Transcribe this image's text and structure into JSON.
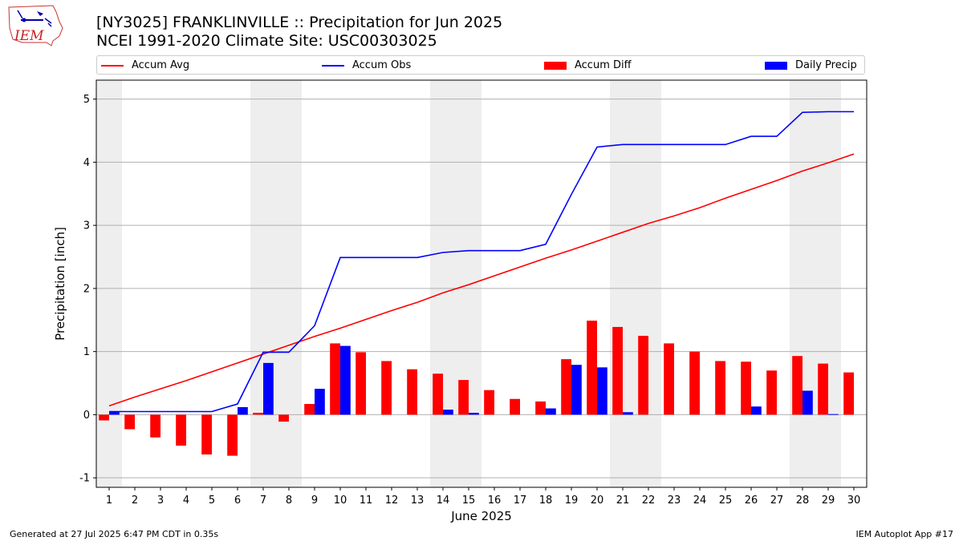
{
  "header": {
    "title": "[NY3025] FRANKLINVILLE :: Precipitation for Jun 2025",
    "subtitle": "NCEI 1991-2020 Climate Site: USC00303025"
  },
  "logo": {
    "text": "IEM"
  },
  "legend": {
    "placement": "top",
    "items": [
      {
        "label": "Accum Avg",
        "kind": "line",
        "color": "#ff0000"
      },
      {
        "label": "Accum Obs",
        "kind": "line",
        "color": "#0000ff"
      },
      {
        "label": "Accum Diff",
        "kind": "bar",
        "color": "#ff0000"
      },
      {
        "label": "Daily Precip",
        "kind": "bar",
        "color": "#0000ff"
      }
    ]
  },
  "footer": {
    "left": "Generated at 27 Jul 2025 6:47 PM CDT in 0.35s",
    "right": "IEM Autoplot App #17"
  },
  "chart_data": {
    "type": "bar",
    "title": "[NY3025] FRANKLINVILLE :: Precipitation for Jun 2025",
    "subtitle": "NCEI 1991-2020 Climate Site: USC00303025",
    "xlabel": "June 2025",
    "ylabel": "Precipitation [inch]",
    "ylim": [
      -1.15,
      5.3
    ],
    "xlim": [
      0.5,
      30.5
    ],
    "grid": "horizontal",
    "legend_placement": "top",
    "categories": [
      "1",
      "2",
      "3",
      "4",
      "5",
      "6",
      "7",
      "8",
      "9",
      "10",
      "11",
      "12",
      "13",
      "14",
      "15",
      "16",
      "17",
      "18",
      "19",
      "20",
      "21",
      "22",
      "23",
      "24",
      "25",
      "26",
      "27",
      "28",
      "29",
      "30"
    ],
    "yticks": [
      -1,
      0,
      1,
      2,
      3,
      4,
      5
    ],
    "weekend_shading": [
      [
        0.5,
        1.5
      ],
      [
        6.5,
        8.5
      ],
      [
        13.5,
        15.5
      ],
      [
        20.5,
        22.5
      ],
      [
        27.5,
        29.5
      ]
    ],
    "series": [
      {
        "name": "Accum Avg",
        "kind": "line",
        "color": "#ff0000",
        "values": [
          0.14,
          0.28,
          0.41,
          0.54,
          0.68,
          0.82,
          0.96,
          1.1,
          1.24,
          1.37,
          1.51,
          1.65,
          1.78,
          1.93,
          2.06,
          2.2,
          2.34,
          2.48,
          2.61,
          2.75,
          2.89,
          3.03,
          3.15,
          3.28,
          3.43,
          3.57,
          3.71,
          3.86,
          3.99,
          4.13
        ]
      },
      {
        "name": "Accum Obs",
        "kind": "line",
        "color": "#0000ff",
        "values": [
          0.05,
          0.05,
          0.05,
          0.05,
          0.05,
          0.17,
          0.99,
          0.99,
          1.41,
          2.49,
          2.49,
          2.49,
          2.49,
          2.57,
          2.6,
          2.6,
          2.6,
          2.7,
          3.49,
          4.24,
          4.28,
          4.28,
          4.28,
          4.28,
          4.28,
          4.41,
          4.41,
          4.79,
          4.8,
          4.8
        ]
      },
      {
        "name": "Accum Diff",
        "kind": "bar",
        "color": "#ff0000",
        "values": [
          -0.09,
          -0.23,
          -0.36,
          -0.49,
          -0.63,
          -0.65,
          0.03,
          -0.11,
          0.17,
          1.13,
          0.99,
          0.85,
          0.72,
          0.65,
          0.55,
          0.39,
          0.25,
          0.21,
          0.88,
          1.49,
          1.39,
          1.25,
          1.13,
          1.0,
          0.85,
          0.84,
          0.7,
          0.93,
          0.81,
          0.67
        ]
      },
      {
        "name": "Daily Precip",
        "kind": "bar",
        "color": "#0000ff",
        "values": [
          0.05,
          0.0,
          0.0,
          0.0,
          0.0,
          0.12,
          0.82,
          0.0,
          0.41,
          1.09,
          0.0,
          0.0,
          0.0,
          0.08,
          0.03,
          0.0,
          0.0,
          0.1,
          0.79,
          0.75,
          0.04,
          0.0,
          0.0,
          0.0,
          0.0,
          0.13,
          0.0,
          0.38,
          0.01,
          0.0
        ]
      }
    ]
  }
}
